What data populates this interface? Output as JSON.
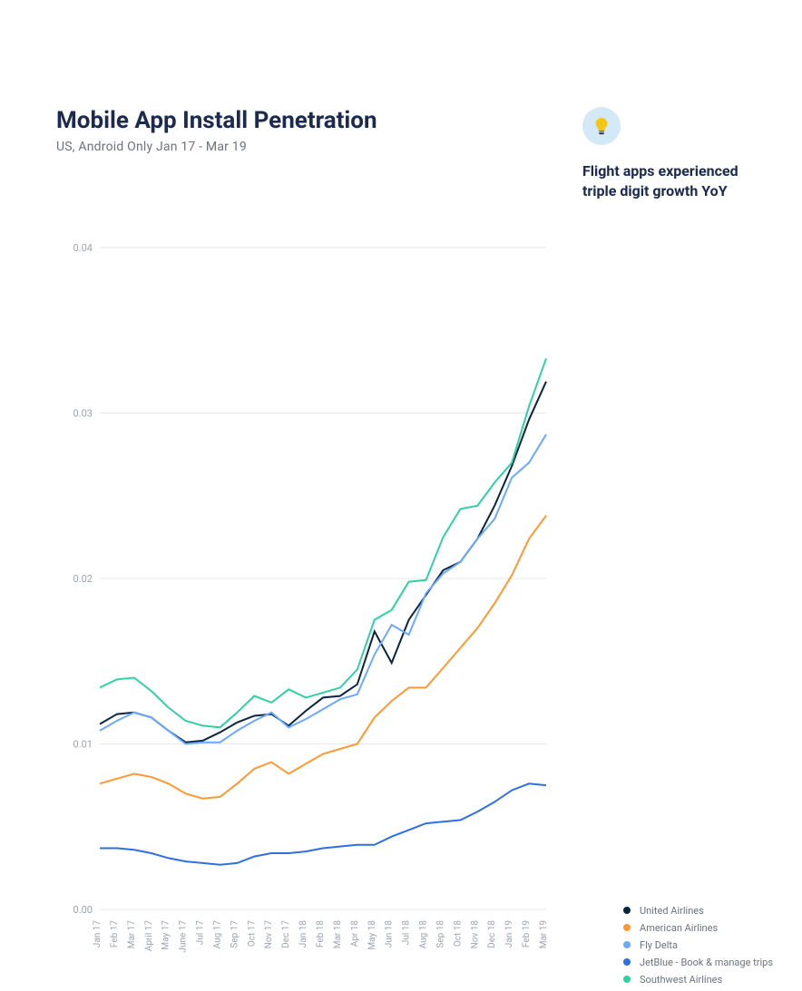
{
  "title": "Mobile App Install Penetration",
  "subtitle": "US, Android Only  Jan 17 - Mar 19",
  "callout_text": "Flight apps experienced triple digit growth YoY",
  "chart": {
    "type": "line",
    "background_color": "#ffffff",
    "grid_color": "#e5e7eb",
    "axis_label_color": "#9ca3af",
    "title_color": "#1b2a4e",
    "ylim": [
      0,
      0.04
    ],
    "yticks": [
      0.0,
      0.01,
      0.02,
      0.03,
      0.04
    ],
    "ytick_labels": [
      "0.00",
      "0.01",
      "0.02",
      "0.03",
      "0.04"
    ],
    "tick_fontsize": 10,
    "line_width": 2,
    "x_labels": [
      "Jan 17",
      "Feb 17",
      "Mar 17",
      "April 17",
      "May 17",
      "June 17",
      "Jul 17",
      "Aug 17",
      "Sep 17",
      "Oct 17",
      "Nov 17",
      "Dec 17",
      "Jan 18",
      "Feb 18",
      "Mar 18",
      "Apr 18",
      "May 18",
      "Jun 18",
      "Jul 18",
      "Aug 18",
      "Sep 18",
      "Oct 18",
      "Nov 18",
      "Dec 18",
      "Jan 19",
      "Feb 19",
      "Mar 19"
    ],
    "series": [
      {
        "name": "United Airlines",
        "color": "#0a2540",
        "values": [
          0.0112,
          0.0118,
          0.0119,
          0.0116,
          0.0108,
          0.0101,
          0.0102,
          0.0107,
          0.0113,
          0.0117,
          0.0118,
          0.0111,
          0.012,
          0.0128,
          0.0129,
          0.0136,
          0.0168,
          0.0149,
          0.0175,
          0.019,
          0.0205,
          0.021,
          0.0224,
          0.0244,
          0.0268,
          0.0296,
          0.0319
        ]
      },
      {
        "name": "American Airlines",
        "color": "#ff9933",
        "values": [
          0.0076,
          0.0079,
          0.0082,
          0.008,
          0.0076,
          0.007,
          0.0067,
          0.0068,
          0.0076,
          0.0085,
          0.0089,
          0.0082,
          0.0088,
          0.0094,
          0.0097,
          0.01,
          0.0116,
          0.0126,
          0.0134,
          0.0134,
          0.0146,
          0.0158,
          0.017,
          0.0185,
          0.0202,
          0.0224,
          0.0238
        ]
      },
      {
        "name": "Fly Delta",
        "color": "#6aa9ff",
        "values": [
          0.0108,
          0.0114,
          0.0119,
          0.0116,
          0.0108,
          0.01,
          0.0101,
          0.0101,
          0.0108,
          0.0114,
          0.0119,
          0.011,
          0.0115,
          0.0121,
          0.0127,
          0.013,
          0.0154,
          0.0172,
          0.0166,
          0.0191,
          0.0203,
          0.021,
          0.0224,
          0.0236,
          0.0261,
          0.027,
          0.0287
        ]
      },
      {
        "name": "JetBlue - Book & manage trips",
        "color": "#2f6fe0",
        "values": [
          0.0037,
          0.0037,
          0.0036,
          0.0034,
          0.0031,
          0.0029,
          0.0028,
          0.0027,
          0.0028,
          0.0032,
          0.0034,
          0.0034,
          0.0035,
          0.0037,
          0.0038,
          0.0039,
          0.0039,
          0.0044,
          0.0048,
          0.0052,
          0.0053,
          0.0054,
          0.0059,
          0.0065,
          0.0072,
          0.0076,
          0.0075
        ]
      },
      {
        "name": "Southwest Airlines",
        "color": "#2fd0a3",
        "values": [
          0.0134,
          0.0139,
          0.014,
          0.0132,
          0.0122,
          0.0114,
          0.0111,
          0.011,
          0.0119,
          0.0129,
          0.0125,
          0.0133,
          0.0128,
          0.0131,
          0.0134,
          0.0145,
          0.0175,
          0.0181,
          0.0198,
          0.0199,
          0.0225,
          0.0242,
          0.0244,
          0.0258,
          0.027,
          0.0304,
          0.0333
        ]
      }
    ]
  },
  "legend_label_fontsize": 11,
  "bulb_icon_bg": "#d4e9f7",
  "bulb_icon_fill": "#f5c518",
  "bulb_icon_base": "#1b2a4e"
}
